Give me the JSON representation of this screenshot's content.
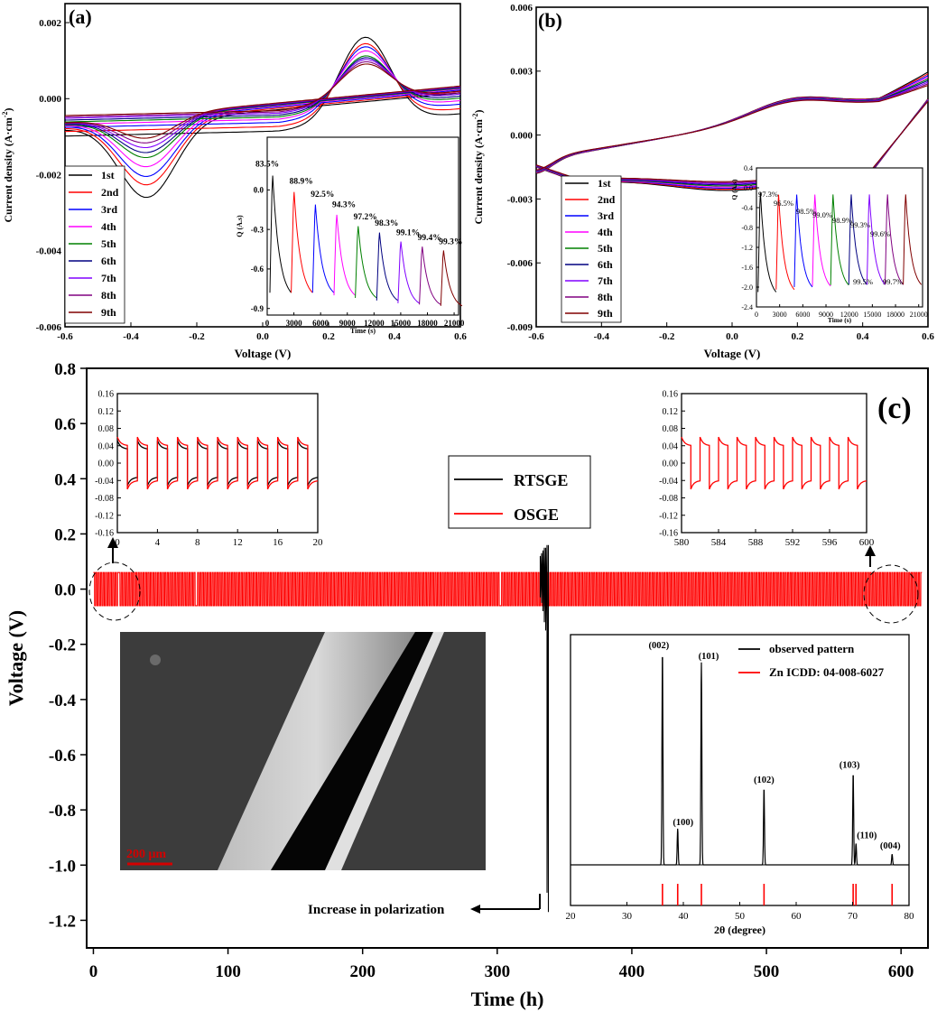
{
  "chart_data": [
    {
      "type": "line",
      "panel_label": "(a)",
      "xlabel": "Voltage (V)",
      "ylabel": "Current density (A·cm⁻²)",
      "ylabel_main": "Current density (A·cm",
      "ylabel_sup": "-2",
      "ylabel_tail": ")",
      "xlim": [
        -0.6,
        0.6
      ],
      "ylim": [
        -0.006,
        0.0025
      ],
      "xticks": [
        -0.6,
        -0.4,
        -0.2,
        0.0,
        0.2,
        0.4,
        0.6
      ],
      "xtick_labels": [
        "-0.6",
        "-0.4",
        "-0.2",
        "0.0",
        "0.2",
        "0.4",
        "0.6"
      ],
      "yticks": [
        -0.006,
        -0.004,
        -0.002,
        0.0,
        0.002
      ],
      "ytick_labels": [
        "-0.006",
        "-0.004",
        "-0.002",
        "0.000",
        "0.002"
      ],
      "legend_position": "bottom-left",
      "series": [
        {
          "name": "1st",
          "color": "#000000",
          "anodic_peak": 0.0023,
          "cathodic_peak": -0.0021
        },
        {
          "name": "2nd",
          "color": "#ff0000",
          "anodic_peak": 0.002,
          "cathodic_peak": -0.00185
        },
        {
          "name": "3rd",
          "color": "#0000ff",
          "anodic_peak": 0.0018,
          "cathodic_peak": -0.0017
        },
        {
          "name": "4th",
          "color": "#ff00ff",
          "anodic_peak": 0.0016,
          "cathodic_peak": -0.0015
        },
        {
          "name": "5th",
          "color": "#008000",
          "anodic_peak": 0.0014,
          "cathodic_peak": -0.0013
        },
        {
          "name": "6th",
          "color": "#000080",
          "anodic_peak": 0.0013,
          "cathodic_peak": -0.0012
        },
        {
          "name": "7th",
          "color": "#8000ff",
          "anodic_peak": 0.0012,
          "cathodic_peak": -0.0011
        },
        {
          "name": "8th",
          "color": "#800080",
          "anodic_peak": 0.0011,
          "cathodic_peak": -0.001
        },
        {
          "name": "9th",
          "color": "#800000",
          "anodic_peak": 0.001,
          "cathodic_peak": -0.0009
        }
      ],
      "inset": {
        "type": "line",
        "xlabel": "Time (s)",
        "ylabel": "Q (A.s)",
        "xlim": [
          0,
          21500
        ],
        "ylim": [
          -0.95,
          0.4
        ],
        "xticks": [
          0,
          3000,
          6000,
          9000,
          12000,
          15000,
          18000,
          21000
        ],
        "xtick_labels": [
          "0",
          "3000",
          "6000",
          "9000",
          "12000",
          "15000",
          "18000",
          "21000"
        ],
        "yticks": [
          0.0,
          -0.3,
          -0.6,
          -0.9
        ],
        "ytick_labels": [
          "0.0",
          "-0.3",
          "-0.6",
          "-0.9"
        ],
        "cycles": [
          {
            "peak": 0.15,
            "min": -0.78
          },
          {
            "peak": 0.02,
            "min": -0.78
          },
          {
            "peak": -0.08,
            "min": -0.78
          },
          {
            "peak": -0.16,
            "min": -0.8
          },
          {
            "peak": -0.25,
            "min": -0.82
          },
          {
            "peak": -0.3,
            "min": -0.84
          },
          {
            "peak": -0.37,
            "min": -0.86
          },
          {
            "peak": -0.41,
            "min": -0.87
          },
          {
            "peak": -0.44,
            "min": -0.88
          }
        ],
        "annotations": [
          "83.5%",
          "88.9%",
          "92.5%",
          "94.3%",
          "97.2%",
          "98.3%",
          "99.1%",
          "99.4%",
          "99.3%"
        ]
      }
    },
    {
      "type": "line",
      "panel_label": "(b)",
      "xlabel": "Voltage (V)",
      "ylabel": "Current density (A·cm⁻²)",
      "ylabel_main": "Current density (A·cm",
      "ylabel_sup": "-2",
      "ylabel_tail": ")",
      "xlim": [
        -0.6,
        0.6
      ],
      "ylim": [
        -0.009,
        0.006
      ],
      "xticks": [
        -0.6,
        -0.4,
        -0.2,
        0.0,
        0.2,
        0.4,
        0.6
      ],
      "xtick_labels": [
        "-0.6",
        "-0.4",
        "-0.2",
        "0.0",
        "0.2",
        "0.4",
        "0.6"
      ],
      "yticks": [
        -0.009,
        -0.006,
        -0.003,
        0.0,
        0.003,
        0.006
      ],
      "ytick_labels": [
        "-0.009",
        "-0.006",
        "-0.003",
        "0.000",
        "0.003",
        "0.006"
      ],
      "legend_position": "bottom-left",
      "series": [
        {
          "name": "1st",
          "color": "#000000"
        },
        {
          "name": "2nd",
          "color": "#ff0000"
        },
        {
          "name": "3rd",
          "color": "#0000ff"
        },
        {
          "name": "4th",
          "color": "#ff00ff"
        },
        {
          "name": "5th",
          "color": "#008000"
        },
        {
          "name": "6th",
          "color": "#000080"
        },
        {
          "name": "7th",
          "color": "#8000ff"
        },
        {
          "name": "8th",
          "color": "#800080"
        },
        {
          "name": "9th",
          "color": "#800000"
        }
      ],
      "inset": {
        "type": "line",
        "xlabel": "Time (s)",
        "ylabel": "Q (A.s)",
        "xlim": [
          0,
          21500
        ],
        "ylim": [
          -2.4,
          0.4
        ],
        "xticks": [
          0,
          3000,
          6000,
          9000,
          12000,
          15000,
          18000,
          21000
        ],
        "xtick_labels": [
          "0",
          "3000",
          "6000",
          "9000",
          "12000",
          "15000",
          "18000",
          "21000"
        ],
        "yticks": [
          0.4,
          0.0,
          -0.4,
          -0.8,
          -1.2,
          -1.6,
          -2.0,
          -2.4
        ],
        "ytick_labels": [
          "0.4",
          "0.0",
          "-0.4",
          "-0.8",
          "-1.2",
          "-1.6",
          "-2.0",
          "-2.4"
        ],
        "cycles": [
          {
            "peak": 0.0,
            "min": -2.1
          },
          {
            "peak": -0.05,
            "min": -2.05
          },
          {
            "peak": -0.05,
            "min": -2.0
          },
          {
            "peak": -0.05,
            "min": -1.98
          },
          {
            "peak": -0.05,
            "min": -1.96
          },
          {
            "peak": -0.05,
            "min": -1.95
          },
          {
            "peak": -0.05,
            "min": -1.95
          },
          {
            "peak": -0.05,
            "min": -1.95
          },
          {
            "peak": -0.05,
            "min": -1.95
          }
        ],
        "annotations": [
          "97.3%",
          "96.5%",
          "98.5%",
          "99.0%",
          "98.9%",
          "99.3%",
          "99.6%",
          "99.5%",
          "99.7%"
        ]
      }
    },
    {
      "type": "line",
      "panel_label": "(c)",
      "xlabel": "Time (h)",
      "ylabel": "Voltage (V)",
      "xlim": [
        -5,
        620
      ],
      "ylim": [
        -1.3,
        0.8
      ],
      "xticks": [
        0,
        100,
        200,
        300,
        400,
        500,
        600
      ],
      "xtick_labels": [
        "0",
        "100",
        "200",
        "300",
        "400",
        "500",
        "600"
      ],
      "yticks": [
        0.8,
        0.6,
        0.4,
        0.2,
        0.0,
        -0.2,
        -0.4,
        -0.6,
        -0.8,
        -1.0,
        -1.2
      ],
      "ytick_labels": [
        "0.8",
        "0.6",
        "0.4",
        "0.2",
        "0.0",
        "-0.2",
        "-0.4",
        "-0.6",
        "-0.8",
        "-1.0",
        "-1.2"
      ],
      "series": [
        {
          "name": "RTSGE",
          "color": "#000000",
          "x_range": [
            0,
            340
          ],
          "amplitude": 0.05,
          "failure_time": 338,
          "failure_min": -1.17,
          "failure_max": 0.16
        },
        {
          "name": "OSGE",
          "color": "#ff0000",
          "x_range": [
            0,
            615
          ],
          "amplitude": 0.06
        }
      ],
      "annotation": "Increase in polarization",
      "inset_left": {
        "xlim": [
          0,
          20
        ],
        "ylim": [
          -0.16,
          0.16
        ],
        "xticks": [
          0,
          4,
          8,
          12,
          16,
          20
        ],
        "xtick_labels": [
          "0",
          "4",
          "8",
          "12",
          "16",
          "20"
        ],
        "yticks": [
          0.16,
          0.12,
          0.08,
          0.04,
          0.0,
          -0.04,
          -0.08,
          -0.12,
          -0.16
        ],
        "ytick_labels": [
          "0.16",
          "0.12",
          "0.08",
          "0.04",
          "0.00",
          "-0.04",
          "-0.08",
          "-0.12",
          "-0.16"
        ],
        "period_h": 2,
        "RTSGE_amplitude": 0.052,
        "OSGE_amplitude": 0.06
      },
      "inset_right": {
        "xlim": [
          580,
          600
        ],
        "ylim": [
          -0.16,
          0.16
        ],
        "xticks": [
          580,
          584,
          588,
          592,
          596,
          600
        ],
        "xtick_labels": [
          "580",
          "584",
          "588",
          "592",
          "596",
          "600"
        ],
        "yticks": [
          0.16,
          0.12,
          0.08,
          0.04,
          0.0,
          -0.04,
          -0.08,
          -0.12,
          -0.16
        ],
        "ytick_labels": [
          "0.16",
          "0.12",
          "0.08",
          "0.04",
          "0.00",
          "-0.04",
          "-0.08",
          "-0.12",
          "-0.16"
        ],
        "period_h": 2,
        "OSGE_amplitude": 0.06
      },
      "sem_image": {
        "scale_bar": "200 μm"
      },
      "xrd_inset": {
        "type": "line",
        "xlabel": "2θ (degree)",
        "xlim": [
          20,
          80
        ],
        "xticks": [
          20,
          30,
          40,
          50,
          60,
          70,
          80
        ],
        "xtick_labels": [
          "20",
          "30",
          "40",
          "50",
          "60",
          "70",
          "80"
        ],
        "legend": [
          "observed pattern",
          "Zn ICDD: 04-008-6027"
        ],
        "peaks": [
          {
            "two_theta": 36.3,
            "intensity": 1.0,
            "label": "(002)"
          },
          {
            "two_theta": 39.0,
            "intensity": 0.17,
            "label": "(100)"
          },
          {
            "two_theta": 43.2,
            "intensity": 0.95,
            "label": "(101)"
          },
          {
            "two_theta": 54.3,
            "intensity": 0.36,
            "label": "(102)"
          },
          {
            "two_theta": 70.1,
            "intensity": 0.43,
            "label": "(103)"
          },
          {
            "two_theta": 70.6,
            "intensity": 0.1,
            "label": "(110)"
          },
          {
            "two_theta": 77.0,
            "intensity": 0.05,
            "label": "(004)"
          }
        ],
        "reference_lines": [
          36.3,
          39.0,
          43.2,
          54.3,
          70.1,
          70.6,
          77.0
        ]
      }
    }
  ]
}
